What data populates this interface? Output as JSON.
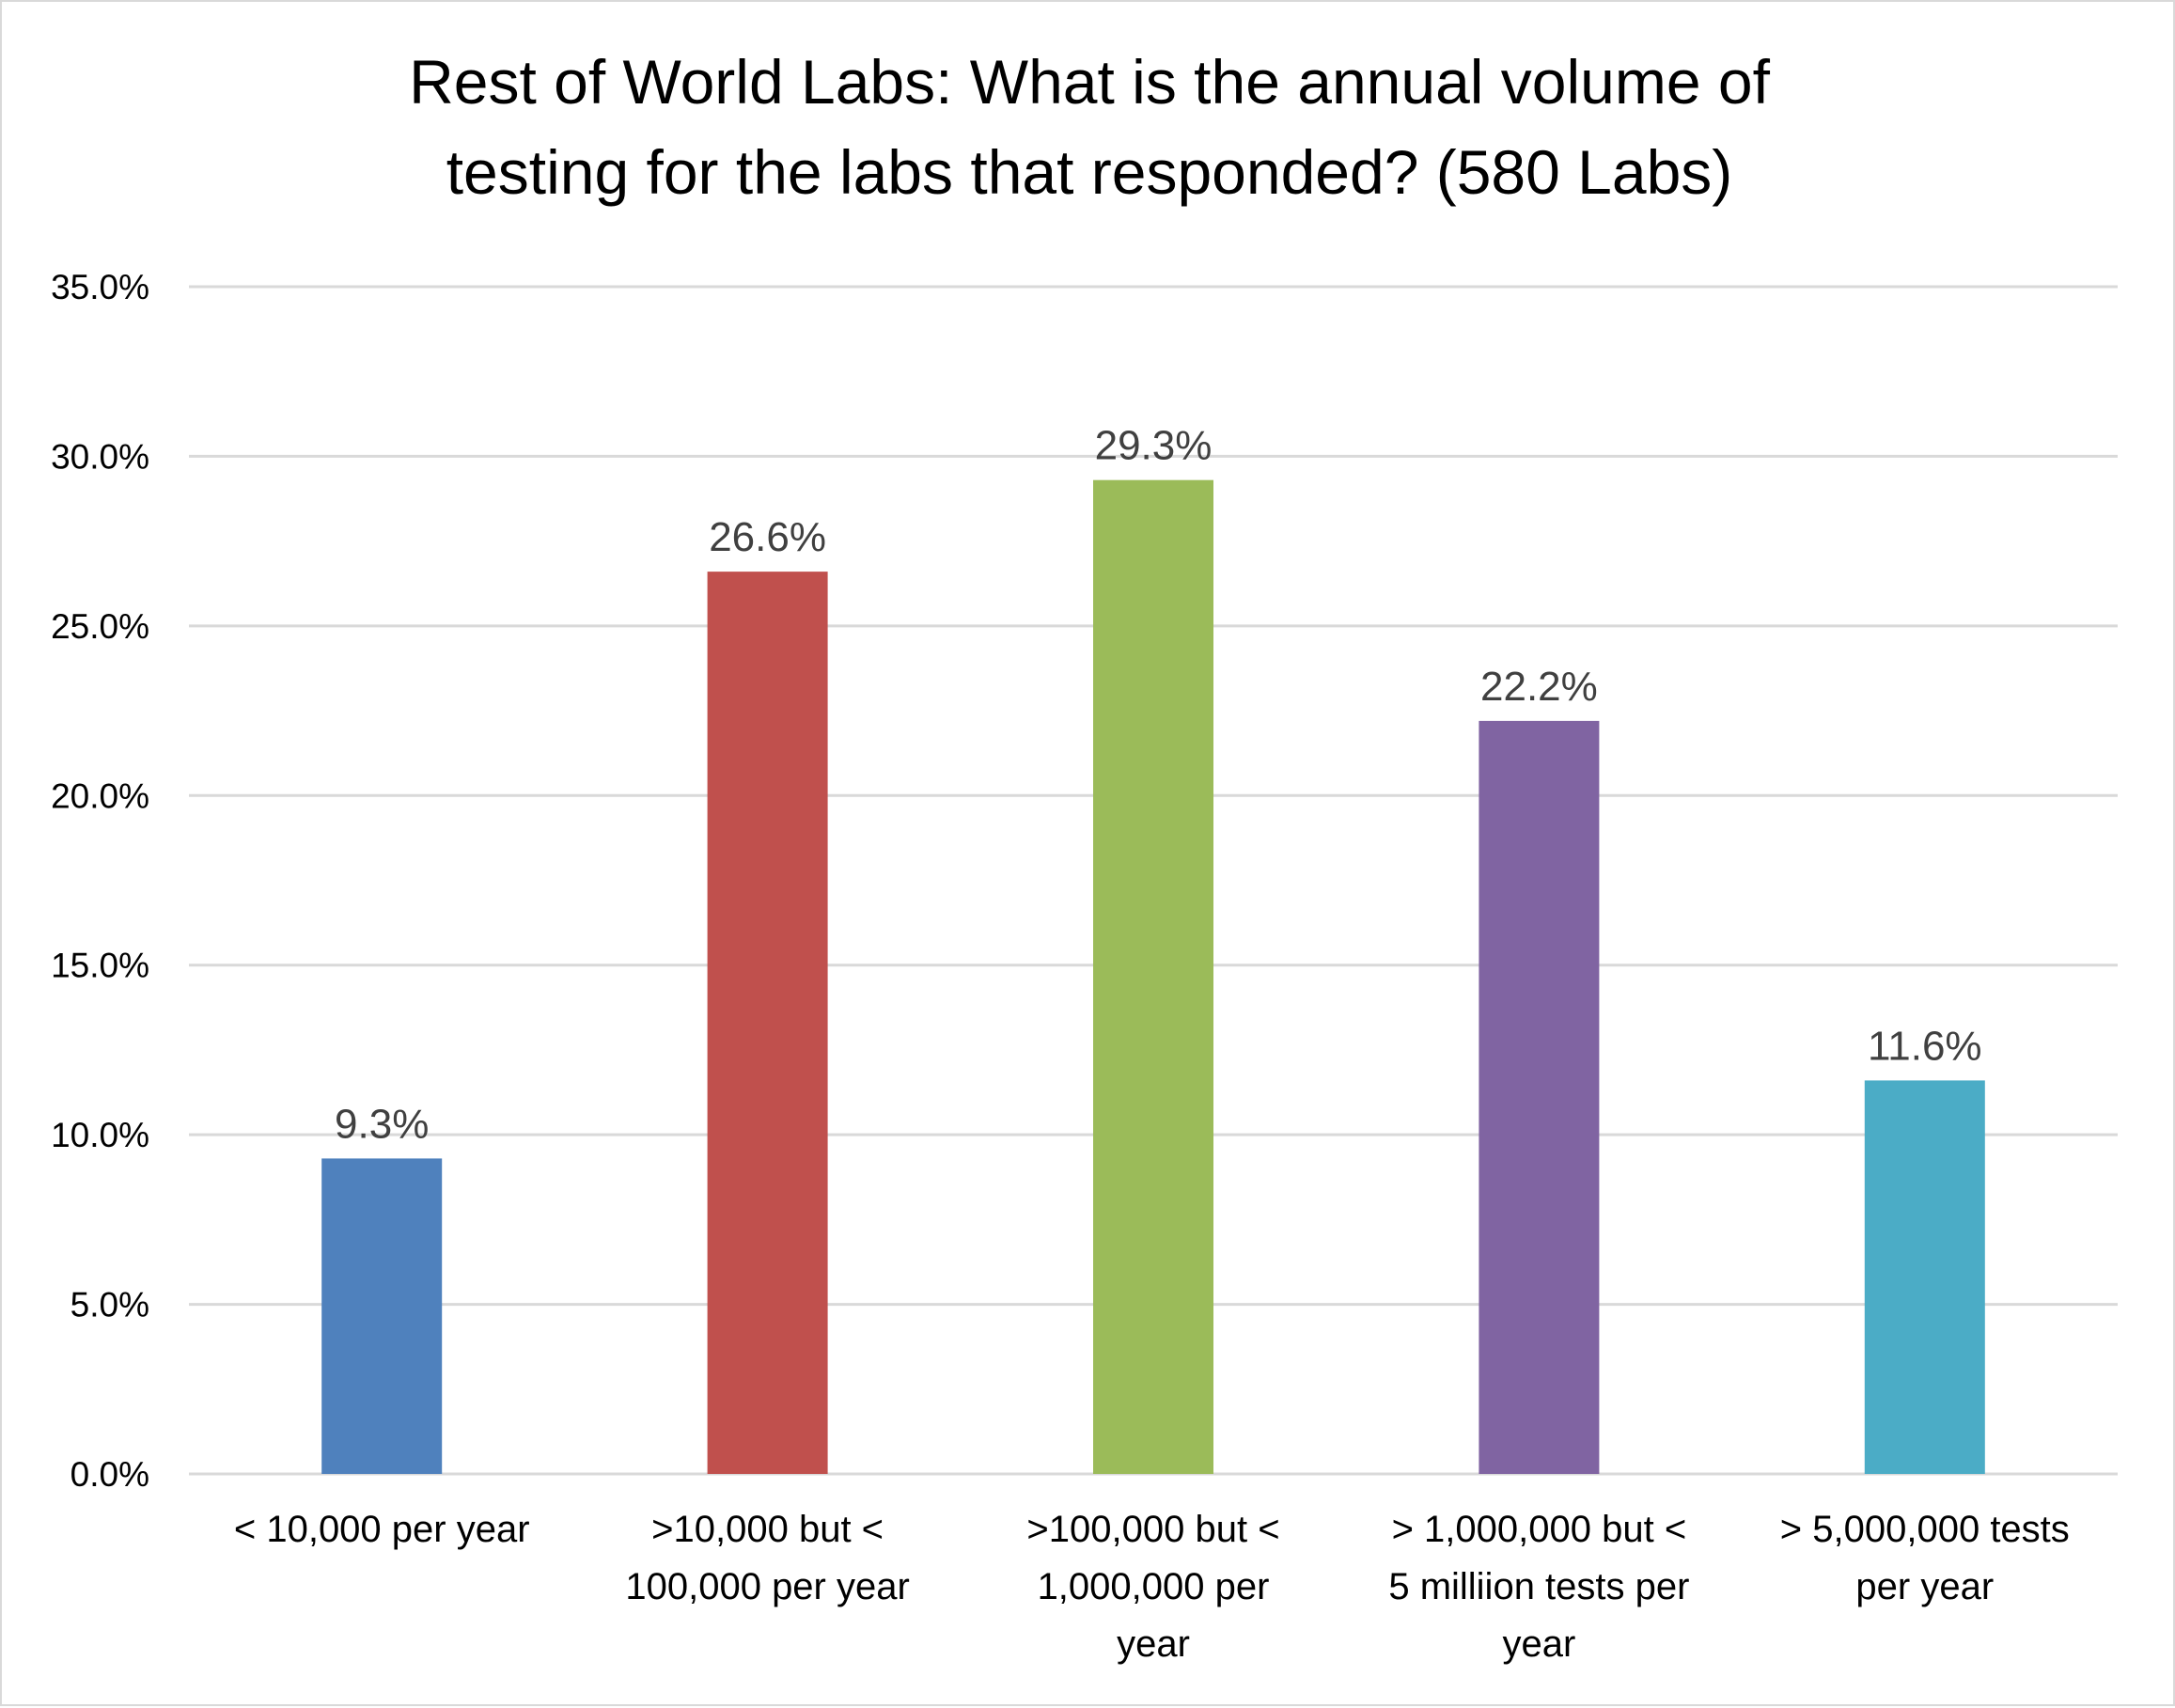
{
  "chart_data": {
    "type": "bar",
    "title": [
      "Rest of World Labs:  What is the annual volume of",
      "testing for the labs that responded? (580 Labs)"
    ],
    "categories": [
      [
        "< 10,000 per year"
      ],
      [
        ">10,000 but <",
        "100,000 per year"
      ],
      [
        ">100,000 but <",
        "1,000,000  per",
        "year"
      ],
      [
        "> 1,000,000 but <",
        "5 milliion tests per",
        "year"
      ],
      [
        "> 5,000,000 tests",
        "per year"
      ]
    ],
    "values": [
      9.3,
      26.6,
      29.3,
      22.2,
      11.6
    ],
    "data_labels": [
      "9.3%",
      "26.6%",
      "29.3%",
      "22.2%",
      "11.6%"
    ],
    "colors": [
      "#4f81bd",
      "#c0504d",
      "#9bbb59",
      "#8064a2",
      "#4bacc6"
    ],
    "ylim": [
      0,
      35
    ],
    "yticks": [
      0,
      5,
      10,
      15,
      20,
      25,
      30,
      35
    ],
    "ytick_labels": [
      "0.0%",
      "5.0%",
      "10.0%",
      "15.0%",
      "20.0%",
      "25.0%",
      "30.0%",
      "35.0%"
    ],
    "grid": true,
    "legend": "none",
    "xlabel": "",
    "ylabel": ""
  }
}
